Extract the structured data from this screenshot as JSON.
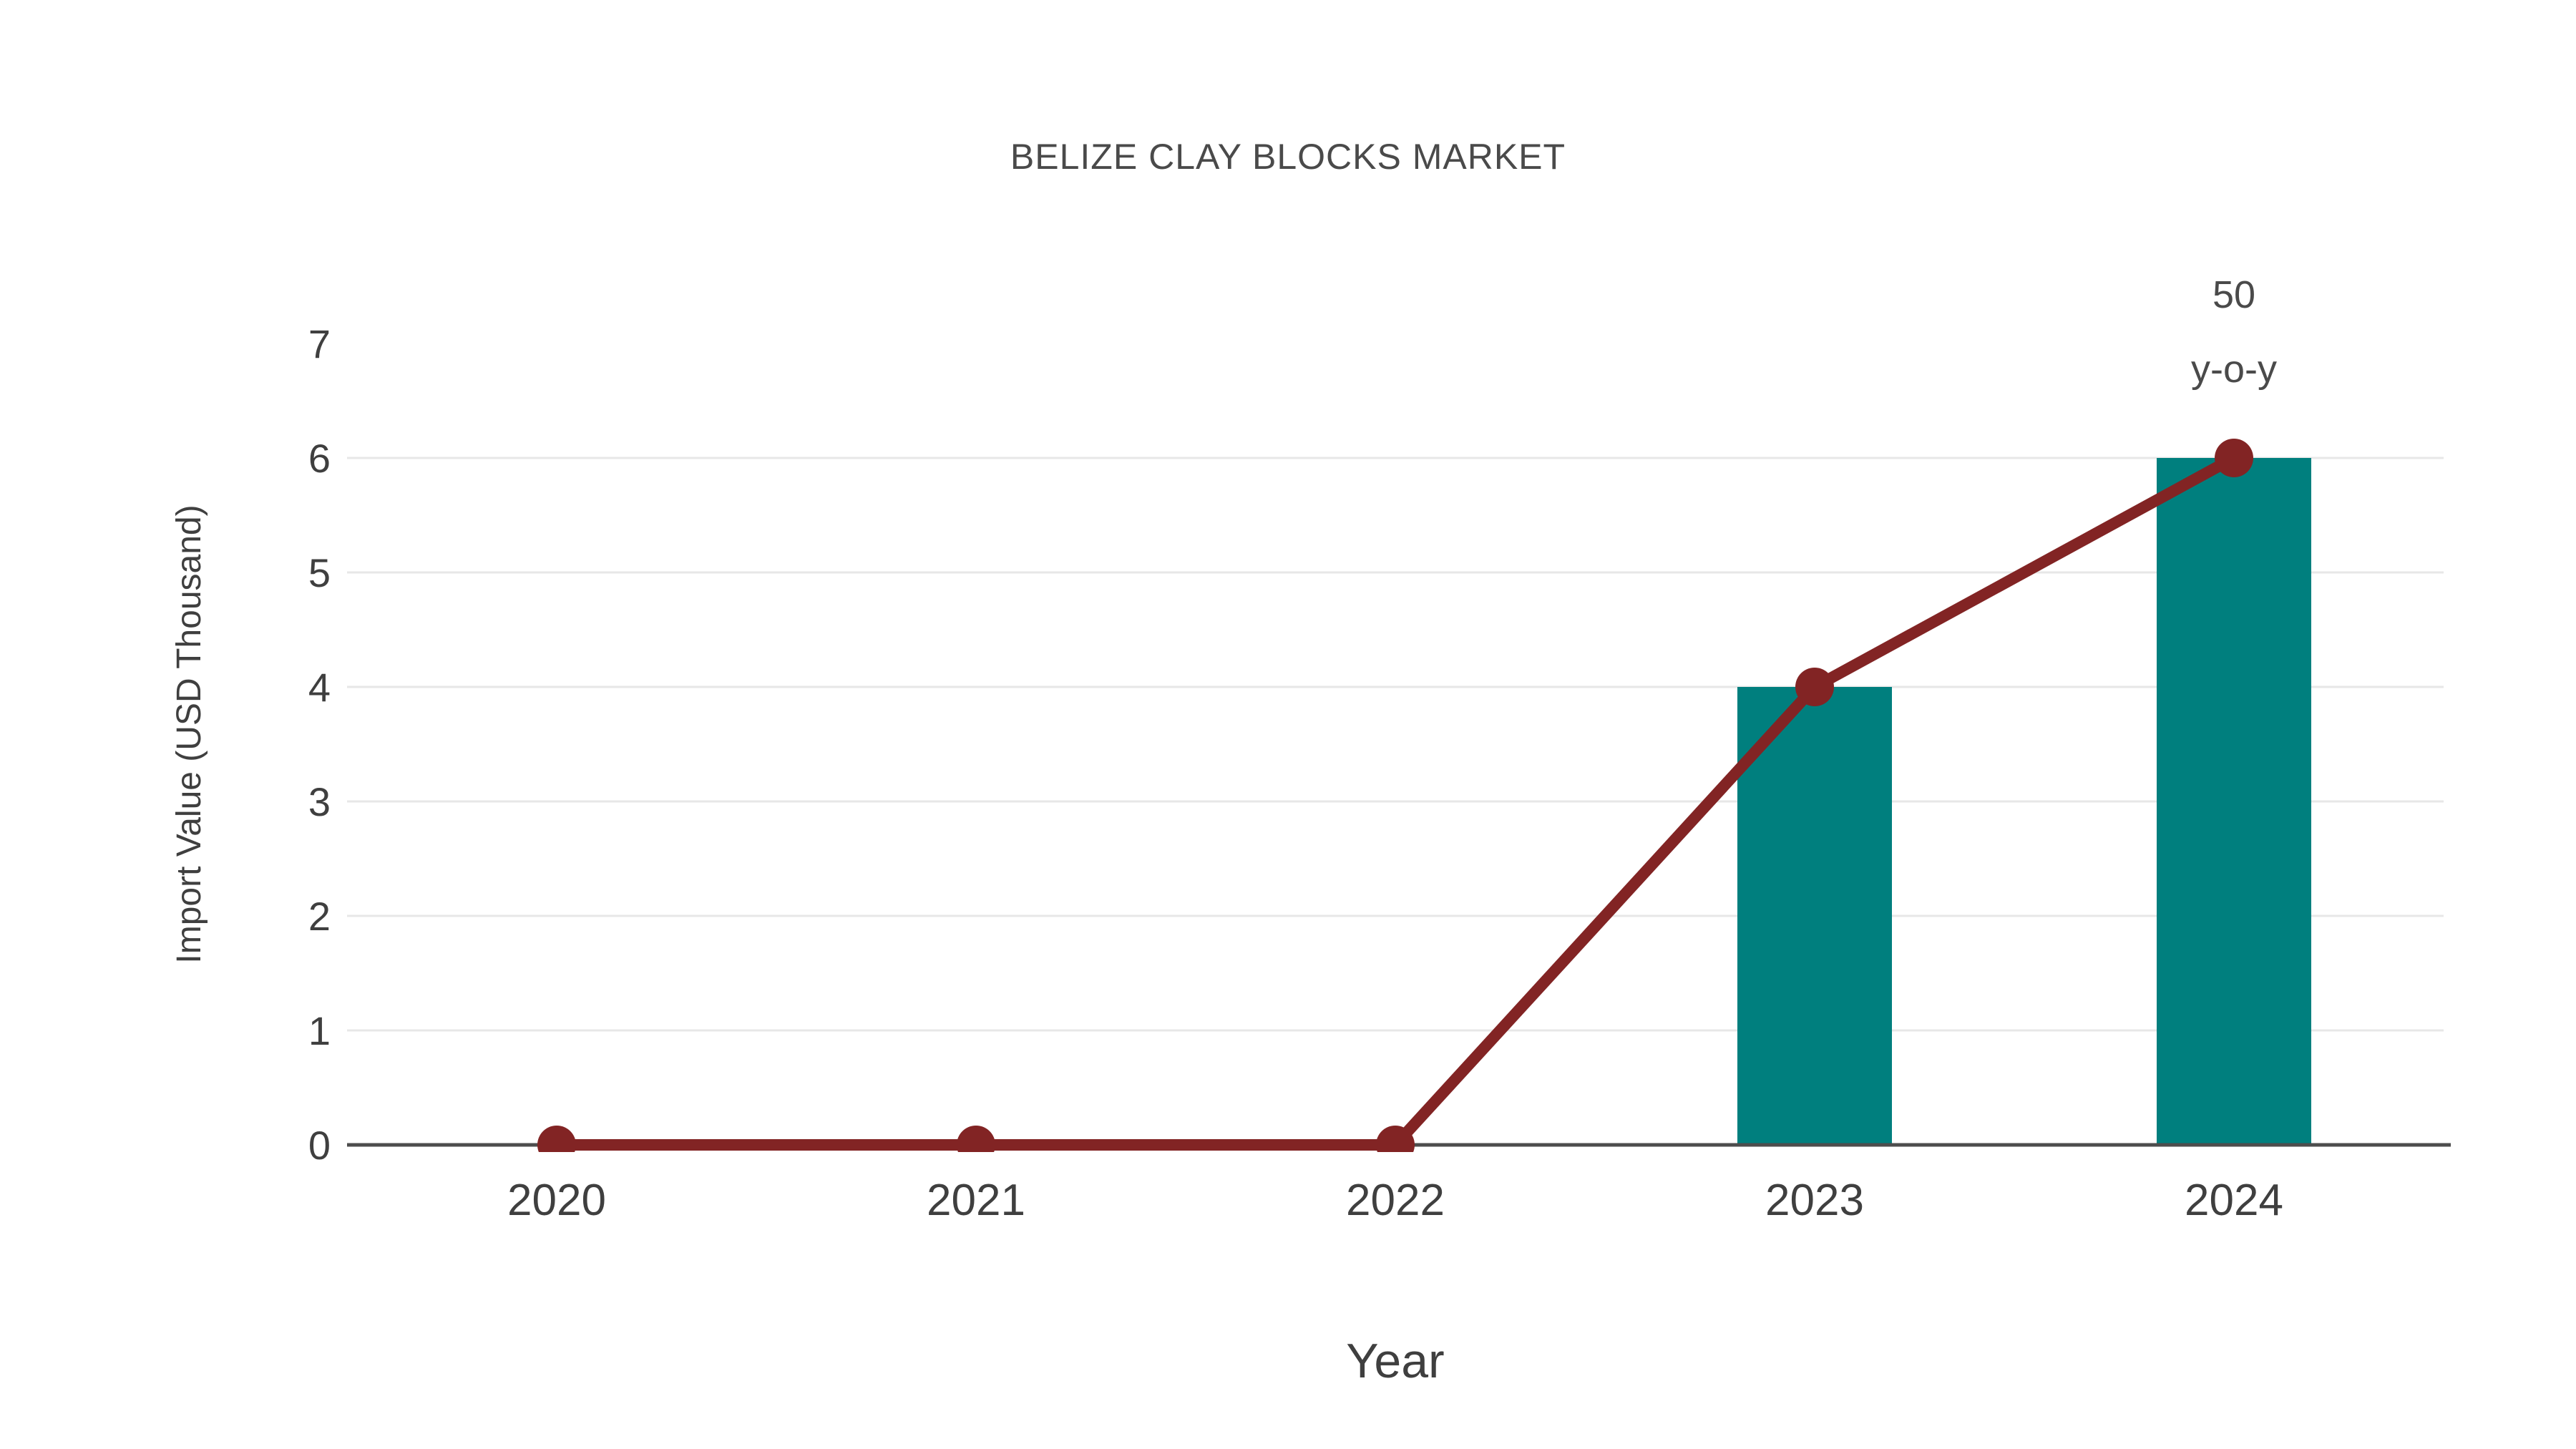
{
  "title": "BELIZE CLAY BLOCKS MARKET",
  "chart_data": {
    "type": "bar",
    "title": "BELIZE CLAY BLOCKS MARKET",
    "xlabel": "Year",
    "ylabel": "Import Value (USD Thousand)",
    "categories": [
      "2020",
      "2021",
      "2022",
      "2023",
      "2024"
    ],
    "series": [
      {
        "name": "Import Value (bars)",
        "type": "bar",
        "values": [
          0,
          0,
          0,
          4,
          6
        ]
      },
      {
        "name": "Import Value (trend line)",
        "type": "line",
        "values": [
          0,
          0,
          0,
          4,
          6
        ]
      }
    ],
    "ylim": [
      0,
      7
    ],
    "yticks": [
      0,
      1,
      2,
      3,
      4,
      5,
      6,
      7
    ],
    "grid": true,
    "legend": "none",
    "annotation": {
      "lines": [
        "50",
        "y-o-y"
      ],
      "target_category": "2024"
    }
  },
  "colors": {
    "background": "#ffffff",
    "bar": "#007f7e",
    "line": "#822424",
    "marker": "#822424",
    "grid": "#e7e7e7",
    "axis": "#4d4d4d",
    "tick_text": "#3f3f3f",
    "title_text": "#4a4a4a",
    "annotation_text": "#4a4a4a"
  }
}
